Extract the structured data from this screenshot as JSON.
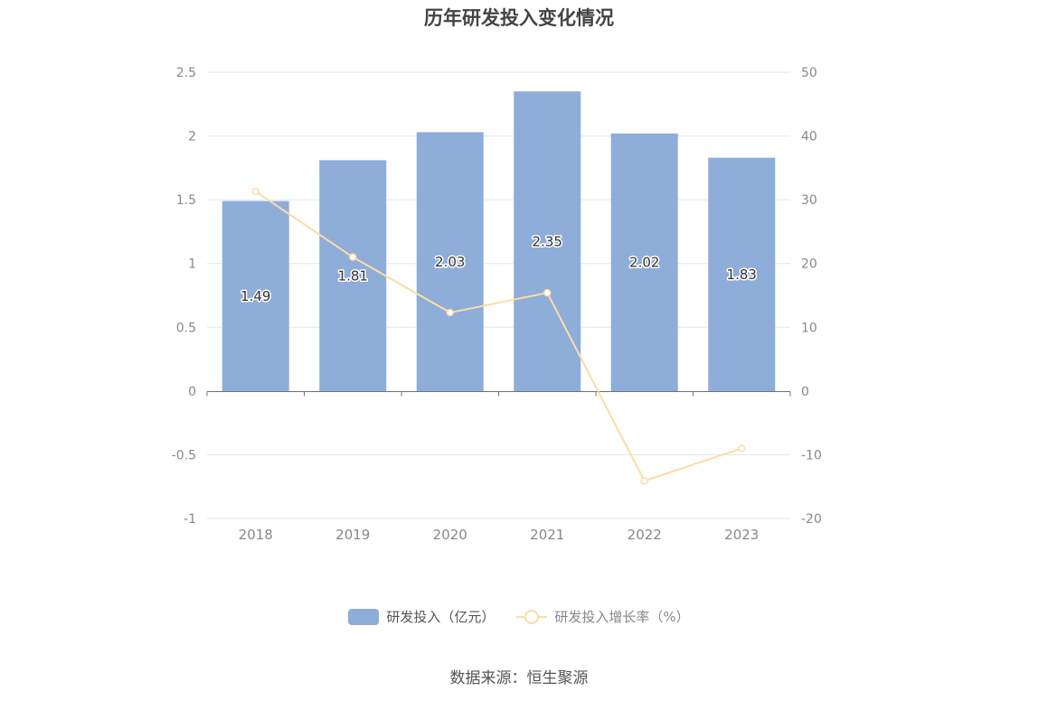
{
  "title": "历年研发投入变化情况",
  "source_note": "数据来源：恒生聚源",
  "legend": {
    "bar_label": "研发投入（亿元）",
    "line_label": "研发投入增长率（%）"
  },
  "colors": {
    "bar": "#8eadd9",
    "line": "#fcdca4",
    "grid": "#e0e6f1",
    "axis": "#6e7079",
    "tick_text": "#888888"
  },
  "chart_data": {
    "type": "bar",
    "categories": [
      "2018",
      "2019",
      "2020",
      "2021",
      "2022",
      "2023"
    ],
    "series": [
      {
        "name": "研发投入（亿元）",
        "type": "bar",
        "axis": "left",
        "values": [
          1.49,
          1.81,
          2.03,
          2.35,
          2.02,
          1.83
        ]
      },
      {
        "name": "研发投入增长率（%）",
        "type": "line",
        "axis": "right",
        "values": [
          31.3,
          21.0,
          12.3,
          15.4,
          -14.1,
          -9.0
        ]
      }
    ],
    "data_labels": [
      "1.49",
      "1.81",
      "2.03",
      "2.35",
      "2.02",
      "1.83"
    ],
    "y_left": {
      "min": -1,
      "max": 2.5,
      "ticks": [
        "-1",
        "-0.5",
        "0",
        "0.5",
        "1",
        "1.5",
        "2",
        "2.5"
      ]
    },
    "y_right": {
      "min": -20,
      "max": 50,
      "ticks": [
        "-20",
        "-10",
        "0",
        "10",
        "20",
        "30",
        "40",
        "50"
      ]
    },
    "grid": true,
    "legend_position": "bottom"
  }
}
